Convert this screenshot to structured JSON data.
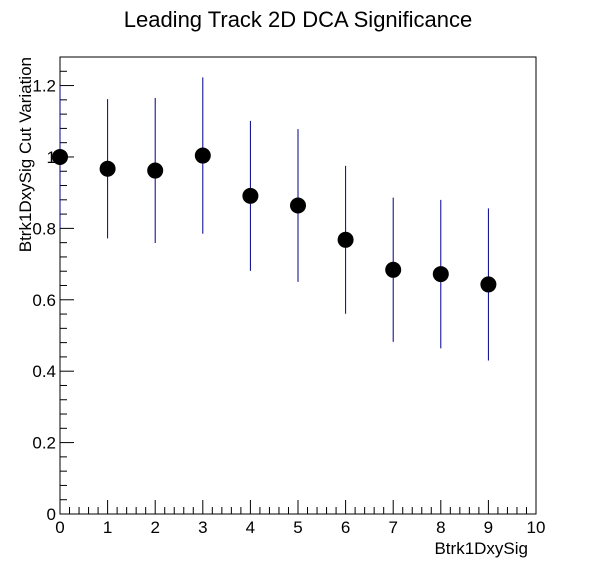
{
  "chart_data": {
    "type": "scatter",
    "title": "Leading Track 2D DCA Significance",
    "xlabel": "Btrk1DxySig",
    "ylabel": "Btrk1DxySig Cut Variation",
    "xlim": [
      0,
      10
    ],
    "ylim": [
      0,
      1.28
    ],
    "x_ticks": [
      "0",
      "1",
      "2",
      "3",
      "4",
      "5",
      "6",
      "7",
      "8",
      "9",
      "10"
    ],
    "y_ticks": [
      "0",
      "0.2",
      "0.4",
      "0.6",
      "0.8",
      "1",
      "1.2"
    ],
    "x_tick_values": [
      0,
      1,
      2,
      3,
      4,
      5,
      6,
      7,
      8,
      9,
      10
    ],
    "y_tick_values": [
      0,
      0.2,
      0.4,
      0.6,
      0.8,
      1.0,
      1.2
    ],
    "grid": false,
    "marker_color": "#000000",
    "errorbar_color": "#00008b",
    "points": [
      {
        "x": 0.0,
        "y": 1.0,
        "err": 0.2
      },
      {
        "x": 1.0,
        "y": 0.967,
        "err": 0.195
      },
      {
        "x": 2.0,
        "y": 0.962,
        "err": 0.203
      },
      {
        "x": 3.0,
        "y": 1.004,
        "err": 0.219
      },
      {
        "x": 4.0,
        "y": 0.891,
        "err": 0.21
      },
      {
        "x": 5.0,
        "y": 0.864,
        "err": 0.214
      },
      {
        "x": 6.0,
        "y": 0.768,
        "err": 0.207
      },
      {
        "x": 7.0,
        "y": 0.684,
        "err": 0.202
      },
      {
        "x": 8.0,
        "y": 0.672,
        "err": 0.208
      },
      {
        "x": 9.0,
        "y": 0.643,
        "err": 0.213
      }
    ]
  }
}
